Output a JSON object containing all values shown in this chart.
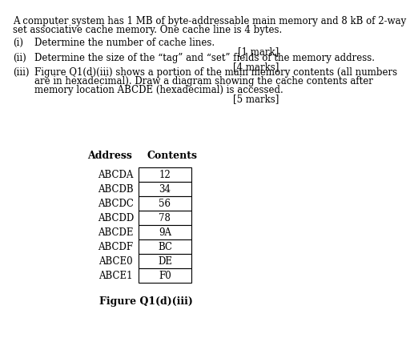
{
  "title_text": "A computer system has 1 MB of byte-addressable main memory and 8 kB of 2-way\nset associative cache memory. One cache line is 4 bytes.",
  "items": [
    {
      "label": "(i)",
      "text": "Determine the number of cache lines.",
      "mark": "[1 mark]"
    },
    {
      "label": "(ii)",
      "text": "Determine the size of the “tag” and “set” fields of the memory address.",
      "mark": "[4 marks]"
    },
    {
      "label": "(iii)",
      "text": "Figure Q1(d)(iii) shows a portion of the main memory contents (all numbers\nare in hexadecimal). Draw a diagram showing the cache contents after\nmemory location ABCDE (hexadecimal) is accessed.",
      "mark": "[5 marks]"
    }
  ],
  "table_header": [
    "Address",
    "Contents"
  ],
  "table_rows": [
    [
      "ABCDA",
      "12"
    ],
    [
      "ABCDB",
      "34"
    ],
    [
      "ABCDC",
      "56"
    ],
    [
      "ABCDD",
      "78"
    ],
    [
      "ABCDE",
      "9A"
    ],
    [
      "ABCDF",
      "BC"
    ],
    [
      "ABCE0",
      "DE"
    ],
    [
      "ABCE1",
      "F0"
    ]
  ],
  "figure_caption": "Figure Q1(d)(iii)",
  "bg_color": "#ffffff",
  "text_color": "#000000",
  "font_size": 8.5,
  "font_family": "serif"
}
